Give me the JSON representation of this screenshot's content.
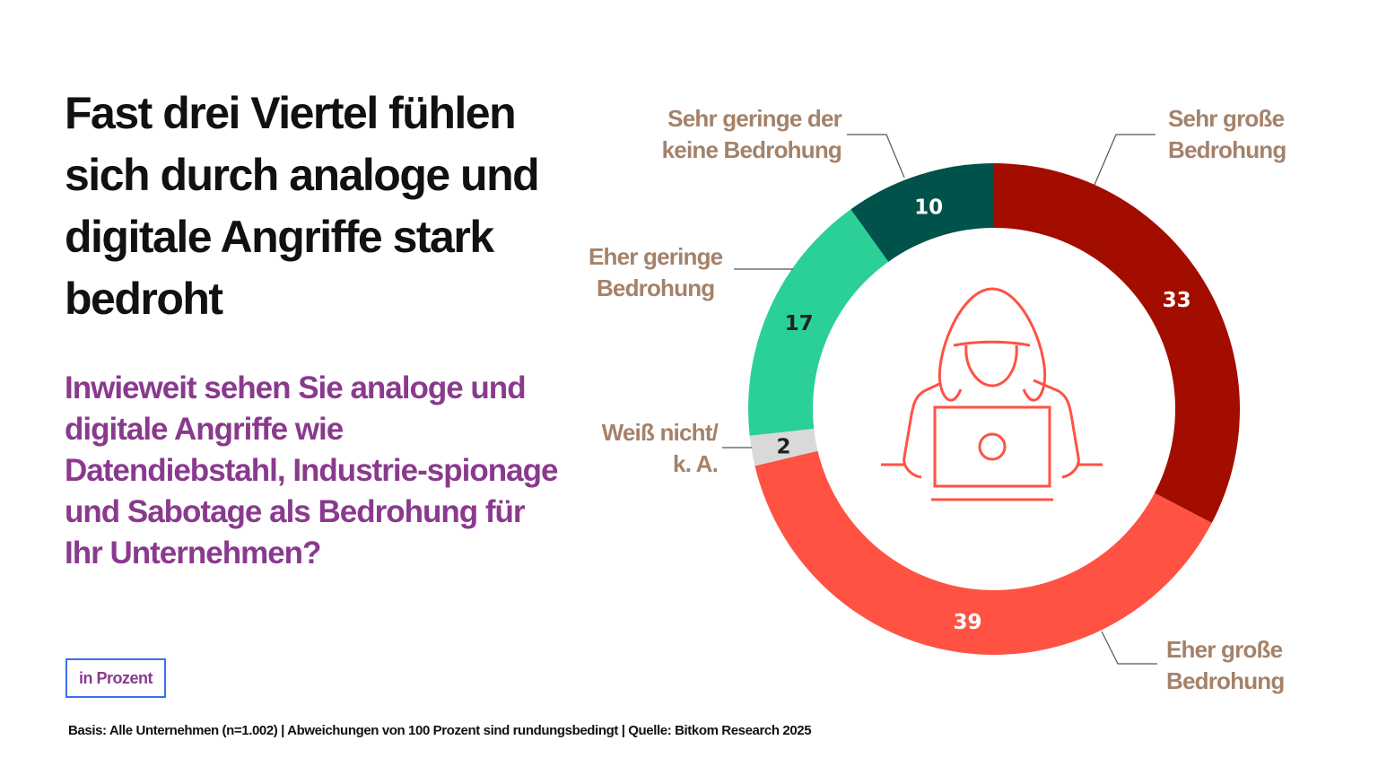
{
  "title": "Fast drei Viertel fühlen sich durch analoge und digitale Angriffe stark bedroht",
  "subtitle": "Inwieweit sehen Sie analoge und digitale Angriffe wie Datendiebstahl, Industrie-spionage und Sabotage als Bedrohung für Ihr Unternehmen?",
  "unit_label": "in Prozent",
  "footer": "Basis: Alle Unternehmen (n=1.002) | Abweichungen von 100 Prozent sind rundungsbedingt | Quelle: Bitkom Research 2025",
  "center_icon": "hacker-laptop-icon",
  "chart_data": {
    "type": "pie",
    "variant": "donut",
    "categories": [
      "Sehr große Bedrohung",
      "Eher große Bedrohung",
      "Weiß nicht/ k. A.",
      "Eher geringe Bedrohung",
      "Sehr geringe der keine Bedrohung"
    ],
    "category_lines": [
      [
        "Sehr große",
        "Bedrohung"
      ],
      [
        "Eher große",
        "Bedrohung"
      ],
      [
        "Weiß nicht/",
        "k. A."
      ],
      [
        "Eher geringe",
        "Bedrohung"
      ],
      [
        "Sehr geringe der",
        "keine Bedrohung"
      ]
    ],
    "values": [
      33,
      39,
      2,
      17,
      10
    ],
    "colors": [
      "#a30d00",
      "#ff5243",
      "#d9d9d9",
      "#2bd096",
      "#00524a"
    ],
    "value_label_colors": [
      "#ffffff",
      "#ffffff",
      "#222222",
      "#222222",
      "#ffffff"
    ],
    "unit": "Prozent",
    "start": "top",
    "direction": "clockwise"
  }
}
